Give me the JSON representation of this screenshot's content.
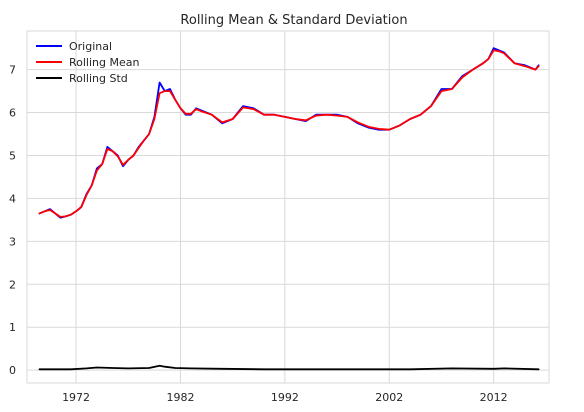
{
  "chart_data": {
    "type": "line",
    "title": "Rolling Mean & Standard Deviation",
    "xlabel": "",
    "ylabel": "",
    "xlim": [
      1967.3,
      2017.3
    ],
    "ylim": [
      -0.3,
      7.9
    ],
    "grid": true,
    "legend_placement": "top-left",
    "x_ticks": [
      1972,
      1982,
      1992,
      2002,
      2012
    ],
    "x_tick_labels": [
      "1972",
      "1982",
      "1992",
      "2002",
      "2012"
    ],
    "y_ticks": [
      0,
      1,
      2,
      3,
      4,
      5,
      6,
      7
    ],
    "y_tick_labels": [
      "0",
      "1",
      "2",
      "3",
      "4",
      "5",
      "6",
      "7"
    ],
    "series": [
      {
        "name": "Original",
        "color": "#0000ff",
        "x": [
          1968.5,
          1969.0,
          1969.5,
          1970.0,
          1970.5,
          1971.0,
          1971.5,
          1972.0,
          1972.5,
          1973.0,
          1973.5,
          1974.0,
          1974.5,
          1975.0,
          1975.5,
          1976.0,
          1976.5,
          1977.0,
          1977.5,
          1978.0,
          1978.5,
          1979.0,
          1979.5,
          1980.0,
          1980.5,
          1981.0,
          1981.5,
          1982.0,
          1982.5,
          1983.0,
          1983.5,
          1984.0,
          1985.0,
          1986.0,
          1987.0,
          1988.0,
          1989.0,
          1990.0,
          1991.0,
          1992.0,
          1993.0,
          1994.0,
          1995.0,
          1996.0,
          1997.0,
          1998.0,
          1999.0,
          2000.0,
          2001.0,
          2002.0,
          2003.0,
          2004.0,
          2005.0,
          2006.0,
          2007.0,
          2008.0,
          2009.0,
          2010.0,
          2011.0,
          2011.5,
          2012.0,
          2012.5,
          2013.0,
          2014.0,
          2015.0,
          2016.0,
          2016.3
        ],
        "values": [
          3.65,
          3.7,
          3.75,
          3.65,
          3.55,
          3.58,
          3.62,
          3.7,
          3.8,
          4.1,
          4.3,
          4.7,
          4.8,
          5.2,
          5.1,
          5.0,
          4.75,
          4.9,
          5.0,
          5.2,
          5.35,
          5.5,
          5.9,
          6.7,
          6.5,
          6.55,
          6.3,
          6.1,
          5.95,
          5.95,
          6.1,
          6.05,
          5.95,
          5.75,
          5.85,
          6.15,
          6.1,
          5.95,
          5.95,
          5.9,
          5.85,
          5.8,
          5.95,
          5.95,
          5.95,
          5.9,
          5.75,
          5.65,
          5.6,
          5.6,
          5.7,
          5.85,
          5.95,
          6.15,
          6.55,
          6.55,
          6.85,
          7.0,
          7.15,
          7.25,
          7.5,
          7.45,
          7.4,
          7.15,
          7.1,
          7.0,
          7.1
        ]
      },
      {
        "name": "Rolling Mean",
        "color": "#ff0000",
        "x": [
          1968.5,
          1969.0,
          1969.5,
          1970.0,
          1970.5,
          1971.0,
          1971.5,
          1972.0,
          1972.5,
          1973.0,
          1973.5,
          1974.0,
          1974.5,
          1975.0,
          1975.5,
          1976.0,
          1976.5,
          1977.0,
          1977.5,
          1978.0,
          1978.5,
          1979.0,
          1979.5,
          1980.0,
          1980.5,
          1981.0,
          1981.5,
          1982.0,
          1982.5,
          1983.0,
          1983.5,
          1984.0,
          1985.0,
          1986.0,
          1987.0,
          1988.0,
          1989.0,
          1990.0,
          1991.0,
          1992.0,
          1993.0,
          1994.0,
          1995.0,
          1996.0,
          1997.0,
          1998.0,
          1999.0,
          2000.0,
          2001.0,
          2002.0,
          2003.0,
          2004.0,
          2005.0,
          2006.0,
          2007.0,
          2008.0,
          2009.0,
          2010.0,
          2011.0,
          2011.5,
          2012.0,
          2012.5,
          2013.0,
          2014.0,
          2015.0,
          2016.0,
          2016.3
        ],
        "values": [
          3.65,
          3.7,
          3.73,
          3.65,
          3.57,
          3.58,
          3.62,
          3.7,
          3.8,
          4.08,
          4.3,
          4.65,
          4.8,
          5.15,
          5.1,
          4.98,
          4.78,
          4.9,
          5.0,
          5.18,
          5.35,
          5.5,
          5.85,
          6.45,
          6.5,
          6.5,
          6.3,
          6.1,
          5.97,
          5.97,
          6.08,
          6.03,
          5.95,
          5.77,
          5.85,
          6.12,
          6.08,
          5.95,
          5.95,
          5.9,
          5.85,
          5.82,
          5.93,
          5.95,
          5.93,
          5.9,
          5.77,
          5.67,
          5.62,
          5.6,
          5.7,
          5.85,
          5.95,
          6.15,
          6.5,
          6.55,
          6.82,
          7.0,
          7.15,
          7.25,
          7.45,
          7.43,
          7.38,
          7.15,
          7.08,
          7.0,
          7.08
        ]
      },
      {
        "name": "Rolling Std",
        "color": "#000000",
        "x": [
          1968.5,
          1970.0,
          1971.5,
          1973.0,
          1974.0,
          1975.5,
          1977.0,
          1979.0,
          1980.0,
          1980.5,
          1981.5,
          1983.0,
          1986.0,
          1990.0,
          1995.0,
          2000.0,
          2004.0,
          2008.0,
          2012.0,
          2013.0,
          2016.3
        ],
        "values": [
          0.02,
          0.02,
          0.02,
          0.04,
          0.06,
          0.05,
          0.04,
          0.05,
          0.1,
          0.08,
          0.05,
          0.04,
          0.03,
          0.02,
          0.02,
          0.02,
          0.02,
          0.04,
          0.03,
          0.04,
          0.02
        ]
      }
    ]
  }
}
